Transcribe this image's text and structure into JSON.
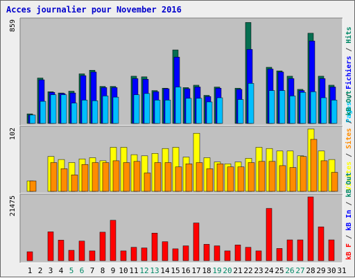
{
  "chart_data": {
    "type": "bar",
    "title": "Acces journalier pour November 2016",
    "x": [
      "1",
      "2",
      "3",
      "4",
      "5",
      "6",
      "7",
      "8",
      "9",
      "10",
      "11",
      "12",
      "13",
      "14",
      "15",
      "16",
      "17",
      "18",
      "19",
      "20",
      "21",
      "22",
      "23",
      "24",
      "25",
      "26",
      "27",
      "28",
      "29",
      "30",
      "31"
    ],
    "weekend_days": [
      "5",
      "6",
      "12",
      "13",
      "19",
      "20",
      "26",
      "27"
    ],
    "panels": [
      {
        "ymax_label": "859",
        "ylim": [
          0,
          859
        ],
        "legend": [
          {
            "text": "Pages",
            "color": "#00ccff"
          },
          {
            "text": "/",
            "color": "#444444"
          },
          {
            "text": "Fichiers",
            "color": "#0000ff"
          },
          {
            "text": "/",
            "color": "#444444"
          },
          {
            "text": "Hits",
            "color": "#008866"
          }
        ],
        "series": [
          {
            "color": "#066e51",
            "values": [
              80,
              380,
              265,
              255,
              270,
              415,
              445,
              310,
              310,
              0,
              395,
              390,
              275,
              295,
              615,
              300,
              320,
              235,
              305,
              0,
              295,
              845,
              0,
              470,
              440,
              395,
              285,
              755,
              395,
              320,
              0
            ]
          },
          {
            "color": "#0000ff",
            "values": [
              70,
              365,
              260,
              250,
              255,
              400,
              430,
              300,
              300,
              0,
              375,
              370,
              265,
              290,
              555,
              290,
              305,
              225,
              295,
              0,
              285,
              620,
              0,
              455,
              430,
              375,
              275,
              690,
              375,
              305,
              0
            ]
          },
          {
            "color": "#00bfff",
            "values": [
              70,
              185,
              240,
              240,
              170,
              195,
              190,
              230,
              220,
              0,
              240,
              250,
              195,
              195,
              305,
              210,
              210,
              180,
              215,
              0,
              200,
              335,
              0,
              275,
              275,
              230,
              260,
              265,
              215,
              195,
              0
            ]
          }
        ]
      },
      {
        "ymax_label": "102",
        "ylim": [
          0,
          102
        ],
        "legend": [
          {
            "text": "Visites",
            "color": "#ffff00"
          },
          {
            "text": "/",
            "color": "#444444"
          },
          {
            "text": "Sites",
            "color": "#ff8c00"
          },
          {
            "text": "/",
            "color": "#444444"
          },
          {
            "text": "kB Out",
            "color": "#008866"
          }
        ],
        "series": [
          {
            "color": "#ffff00",
            "values": [
              17,
              0,
              57,
              52,
              47,
              53,
              55,
              50,
              72,
              72,
              60,
              58,
              62,
              70,
              72,
              56,
              95,
              55,
              48,
              45,
              48,
              54,
              72,
              70,
              66,
              66,
              58,
              102,
              66,
              52,
              0
            ]
          },
          {
            "color": "#ff8c00",
            "values": [
              17,
              0,
              47,
              37,
              27,
              44,
              47,
              47,
              50,
              47,
              49,
              30,
              47,
              47,
              40,
              45,
              47,
              37,
              45,
              40,
              40,
              47,
              49,
              49,
              42,
              39,
              57,
              85,
              50,
              31,
              0
            ]
          }
        ]
      },
      {
        "ymax_label": "21475",
        "ylim": [
          0,
          21475
        ],
        "legend": [
          {
            "text": "kB F",
            "color": "#ff0000"
          },
          {
            "text": "/",
            "color": "#444444"
          },
          {
            "text": "kB In",
            "color": "#0000ff"
          },
          {
            "text": "/",
            "color": "#444444"
          },
          {
            "text": "kB Out",
            "color": "#008866"
          }
        ],
        "series": [
          {
            "color": "#ff0000",
            "values": [
              3000,
              0,
              9700,
              6900,
              3500,
              6600,
              3300,
              9600,
              13600,
              3300,
              4500,
              4300,
              9300,
              6400,
              4000,
              5000,
              12700,
              5500,
              5000,
              3300,
              5300,
              4500,
              3300,
              17600,
              4100,
              7000,
              7000,
              21475,
              11400,
              7000,
              0
            ]
          }
        ]
      }
    ]
  }
}
